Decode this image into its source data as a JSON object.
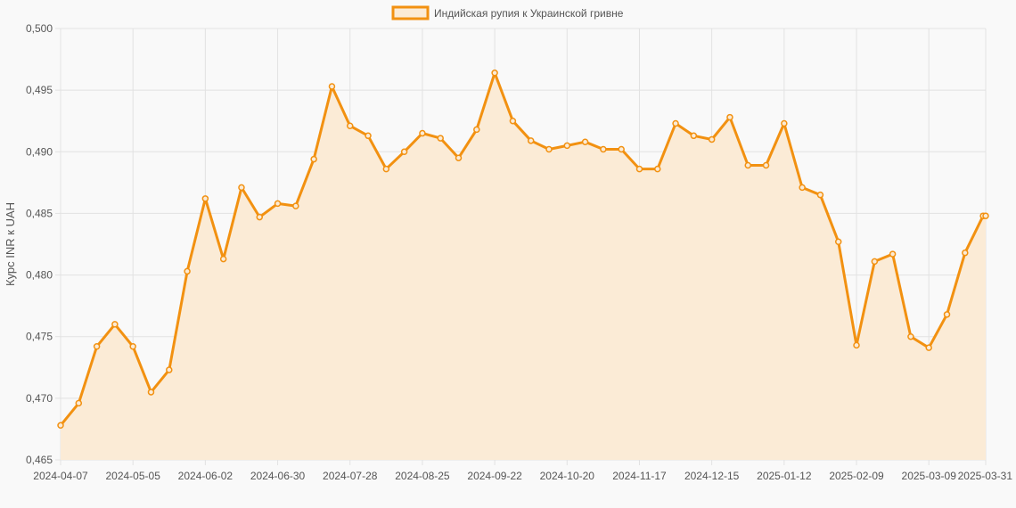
{
  "chart_data": {
    "type": "area",
    "legend": {
      "label": "Индийская рупия к Украинской гривне",
      "position": "top-center"
    },
    "ylabel": "Курс INR к UAH",
    "xlabel": "",
    "grid": true,
    "ylim": [
      0.465,
      0.5
    ],
    "y_ticks": [
      0.465,
      0.47,
      0.475,
      0.48,
      0.485,
      0.49,
      0.495,
      0.5
    ],
    "y_tick_labels": [
      "0,465",
      "0,470",
      "0,475",
      "0,480",
      "0,485",
      "0,490",
      "0,495",
      "0,500"
    ],
    "x_tick_labels": [
      "2024-04-07",
      "2024-05-05",
      "2024-06-02",
      "2024-06-30",
      "2024-07-28",
      "2024-08-25",
      "2024-09-22",
      "2024-10-20",
      "2024-11-17",
      "2024-12-15",
      "2025-01-12",
      "2025-02-09",
      "2025-03-09",
      "2025-03-31"
    ],
    "x_tick_dates": [
      "2024-04-07",
      "2024-05-05",
      "2024-06-02",
      "2024-06-30",
      "2024-07-28",
      "2024-08-25",
      "2024-09-22",
      "2024-10-20",
      "2024-11-17",
      "2024-12-15",
      "2025-01-12",
      "2025-02-09",
      "2025-03-09",
      "2025-03-31"
    ],
    "x": [
      "2024-04-07",
      "2024-04-14",
      "2024-04-21",
      "2024-04-28",
      "2024-05-05",
      "2024-05-12",
      "2024-05-19",
      "2024-05-26",
      "2024-06-02",
      "2024-06-09",
      "2024-06-16",
      "2024-06-23",
      "2024-06-30",
      "2024-07-07",
      "2024-07-14",
      "2024-07-21",
      "2024-07-28",
      "2024-08-04",
      "2024-08-11",
      "2024-08-18",
      "2024-08-25",
      "2024-09-01",
      "2024-09-08",
      "2024-09-15",
      "2024-09-22",
      "2024-09-29",
      "2024-10-06",
      "2024-10-13",
      "2024-10-20",
      "2024-10-27",
      "2024-11-03",
      "2024-11-10",
      "2024-11-17",
      "2024-11-24",
      "2024-12-01",
      "2024-12-08",
      "2024-12-15",
      "2024-12-22",
      "2024-12-29",
      "2025-01-05",
      "2025-01-12",
      "2025-01-19",
      "2025-01-26",
      "2025-02-02",
      "2025-02-09",
      "2025-02-16",
      "2025-02-23",
      "2025-03-02",
      "2025-03-09",
      "2025-03-16",
      "2025-03-23",
      "2025-03-30",
      "2025-03-31"
    ],
    "series": [
      {
        "name": "Индийская рупия к Украинской гривне",
        "values": [
          0.4678,
          0.4696,
          0.4742,
          0.476,
          0.4742,
          0.4705,
          0.4723,
          0.4803,
          0.4862,
          0.4813,
          0.4871,
          0.4847,
          0.4858,
          0.4856,
          0.4894,
          0.4953,
          0.4921,
          0.4913,
          0.4886,
          0.49,
          0.4915,
          0.4911,
          0.4895,
          0.4918,
          0.4964,
          0.4925,
          0.4909,
          0.4902,
          0.4905,
          0.4908,
          0.4902,
          0.4902,
          0.4886,
          0.4886,
          0.4923,
          0.4913,
          0.491,
          0.4928,
          0.4889,
          0.4889,
          0.4923,
          0.4871,
          0.4865,
          0.4827,
          0.4743,
          0.4811,
          0.4817,
          0.475,
          0.4741,
          0.4768,
          0.4818,
          0.4848,
          0.4848
        ]
      }
    ],
    "colors": {
      "line": "#f29111",
      "fill": "#fbebd6",
      "grid": "#e2e2e2",
      "axis": "#555555"
    }
  }
}
